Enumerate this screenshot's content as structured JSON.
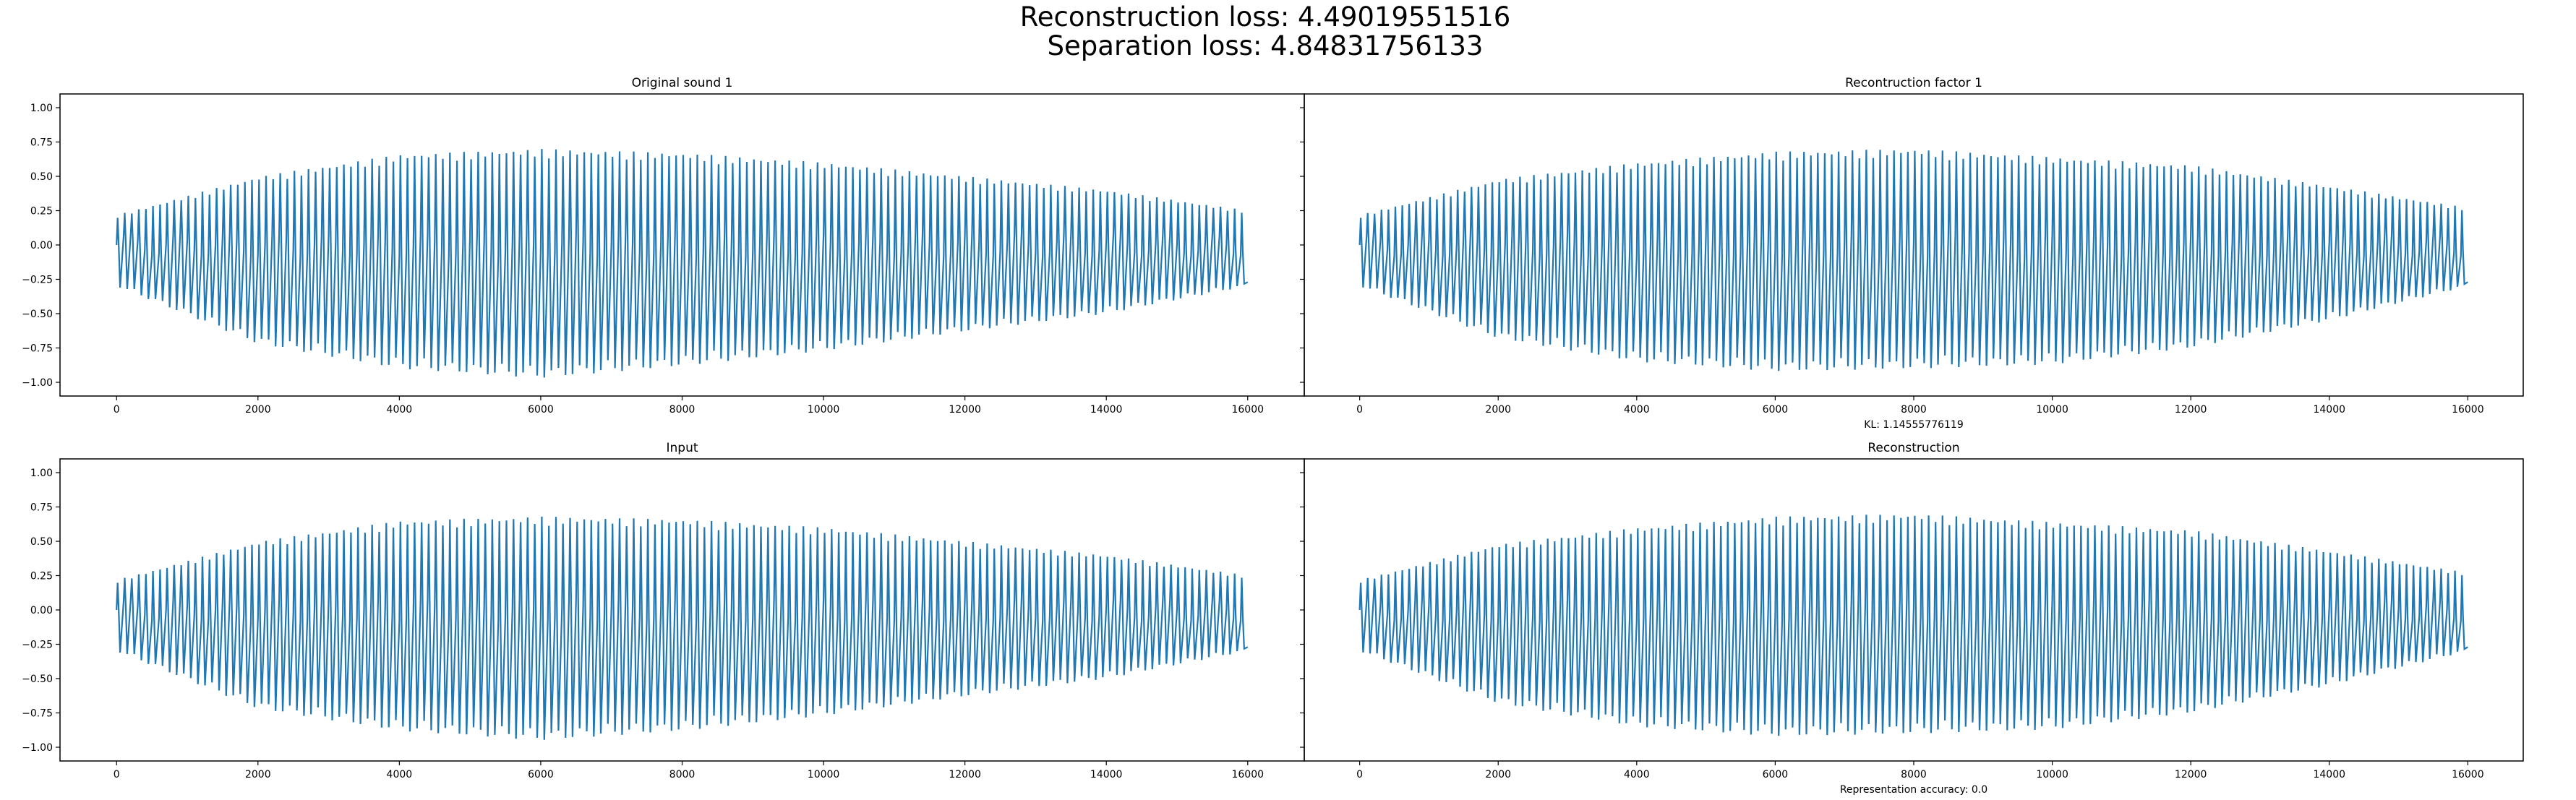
{
  "figure": {
    "suptitle_line1": "Reconstruction loss: 4.49019551516",
    "suptitle_line2": "Separation loss: 4.84831756133"
  },
  "chart_data": [
    {
      "type": "line",
      "title": "Original sound 1",
      "xlabel": "",
      "ylabel": "",
      "xlim": [
        -800,
        16800
      ],
      "ylim": [
        -1.1,
        1.1
      ],
      "xticks": [
        0,
        2000,
        4000,
        6000,
        8000,
        10000,
        12000,
        14000,
        16000
      ],
      "yticks": [
        -1.0,
        -0.75,
        -0.5,
        -0.25,
        0.0,
        0.25,
        0.5,
        0.75,
        1.0
      ],
      "ytick_labels": [
        "−1.00",
        "−0.75",
        "−0.50",
        "−0.25",
        "0.00",
        "0.25",
        "0.50",
        "0.75",
        "1.00"
      ],
      "grid": false,
      "color": "#1f77b4",
      "series": [
        {
          "x_start": 0,
          "x_end": 16000,
          "cycles": 160,
          "envelope_x": [
            0,
            2000,
            4000,
            6000,
            8000,
            10000,
            12000,
            14000,
            16000
          ],
          "upper": [
            0.22,
            0.5,
            0.66,
            0.7,
            0.67,
            0.6,
            0.5,
            0.4,
            0.25
          ],
          "lower": [
            -0.3,
            -0.72,
            -0.9,
            -0.97,
            -0.88,
            -0.77,
            -0.63,
            -0.5,
            -0.3
          ]
        }
      ]
    },
    {
      "type": "line",
      "title": "Recontruction factor 1",
      "xlabel": "KL: 1.14555776119",
      "ylabel": "",
      "xlim": [
        -800,
        16800
      ],
      "ylim": [
        -1.1,
        1.1
      ],
      "xticks": [
        0,
        2000,
        4000,
        6000,
        8000,
        10000,
        12000,
        14000,
        16000
      ],
      "grid": false,
      "color": "#1f77b4",
      "series": [
        {
          "x_start": 0,
          "x_end": 16000,
          "cycles": 160,
          "envelope_x": [
            0,
            2000,
            4000,
            6000,
            8000,
            10000,
            12000,
            14000,
            16000
          ],
          "upper": [
            0.22,
            0.48,
            0.6,
            0.68,
            0.7,
            0.64,
            0.58,
            0.43,
            0.27
          ],
          "lower": [
            -0.3,
            -0.68,
            -0.85,
            -0.92,
            -0.9,
            -0.87,
            -0.75,
            -0.55,
            -0.3
          ]
        }
      ]
    },
    {
      "type": "line",
      "title": "Input",
      "xlabel": "",
      "ylabel": "",
      "xlim": [
        -800,
        16800
      ],
      "ylim": [
        -1.1,
        1.1
      ],
      "xticks": [
        0,
        2000,
        4000,
        6000,
        8000,
        10000,
        12000,
        14000,
        16000
      ],
      "yticks": [
        -1.0,
        -0.75,
        -0.5,
        -0.25,
        0.0,
        0.25,
        0.5,
        0.75,
        1.0
      ],
      "ytick_labels": [
        "−1.00",
        "−0.75",
        "−0.50",
        "−0.25",
        "0.00",
        "0.25",
        "0.50",
        "0.75",
        "1.00"
      ],
      "grid": false,
      "color": "#1f77b4",
      "series": [
        {
          "x_start": 0,
          "x_end": 16000,
          "cycles": 160,
          "envelope_x": [
            0,
            2000,
            4000,
            6000,
            8000,
            10000,
            12000,
            14000,
            16000
          ],
          "upper": [
            0.22,
            0.5,
            0.65,
            0.68,
            0.66,
            0.6,
            0.5,
            0.4,
            0.25
          ],
          "lower": [
            -0.3,
            -0.72,
            -0.88,
            -0.95,
            -0.88,
            -0.77,
            -0.63,
            -0.5,
            -0.3
          ]
        }
      ]
    },
    {
      "type": "line",
      "title": "Reconstruction",
      "xlabel": "Representation accuracy: 0.0",
      "ylabel": "",
      "xlim": [
        -800,
        16800
      ],
      "ylim": [
        -1.1,
        1.1
      ],
      "xticks": [
        0,
        2000,
        4000,
        6000,
        8000,
        10000,
        12000,
        14000,
        16000
      ],
      "grid": false,
      "color": "#1f77b4",
      "series": [
        {
          "x_start": 0,
          "x_end": 16000,
          "cycles": 160,
          "envelope_x": [
            0,
            2000,
            4000,
            6000,
            8000,
            10000,
            12000,
            14000,
            16000
          ],
          "upper": [
            0.22,
            0.48,
            0.6,
            0.68,
            0.7,
            0.64,
            0.58,
            0.43,
            0.27
          ],
          "lower": [
            -0.3,
            -0.68,
            -0.85,
            -0.92,
            -0.9,
            -0.87,
            -0.75,
            -0.55,
            -0.3
          ]
        }
      ]
    }
  ]
}
